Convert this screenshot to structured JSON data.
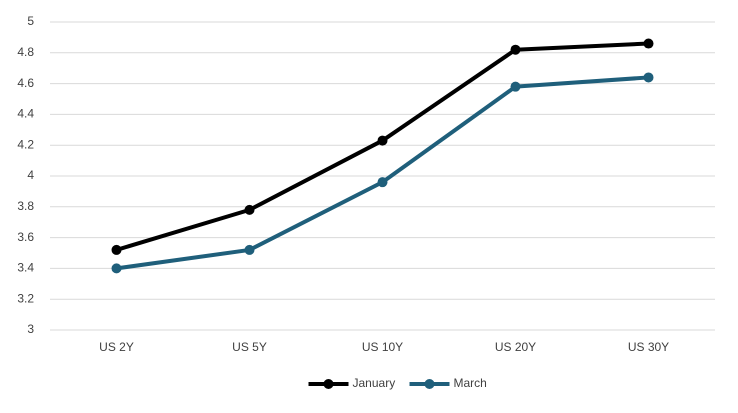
{
  "chart_data": {
    "type": "line",
    "categories": [
      "US 2Y",
      "US 5Y",
      "US 10Y",
      "US 20Y",
      "US 30Y"
    ],
    "series": [
      {
        "name": "January",
        "color": "#000000",
        "values": [
          3.52,
          3.78,
          4.23,
          4.82,
          4.86
        ]
      },
      {
        "name": "March",
        "color": "#1f5f7b",
        "values": [
          3.4,
          3.52,
          3.96,
          4.58,
          4.64
        ]
      }
    ],
    "ylim": [
      3,
      5
    ],
    "yticks": [
      3,
      3.2,
      3.4,
      3.6,
      3.8,
      4,
      4.2,
      4.4,
      4.6,
      4.8,
      5
    ],
    "grid": true,
    "legend": "bottom"
  }
}
